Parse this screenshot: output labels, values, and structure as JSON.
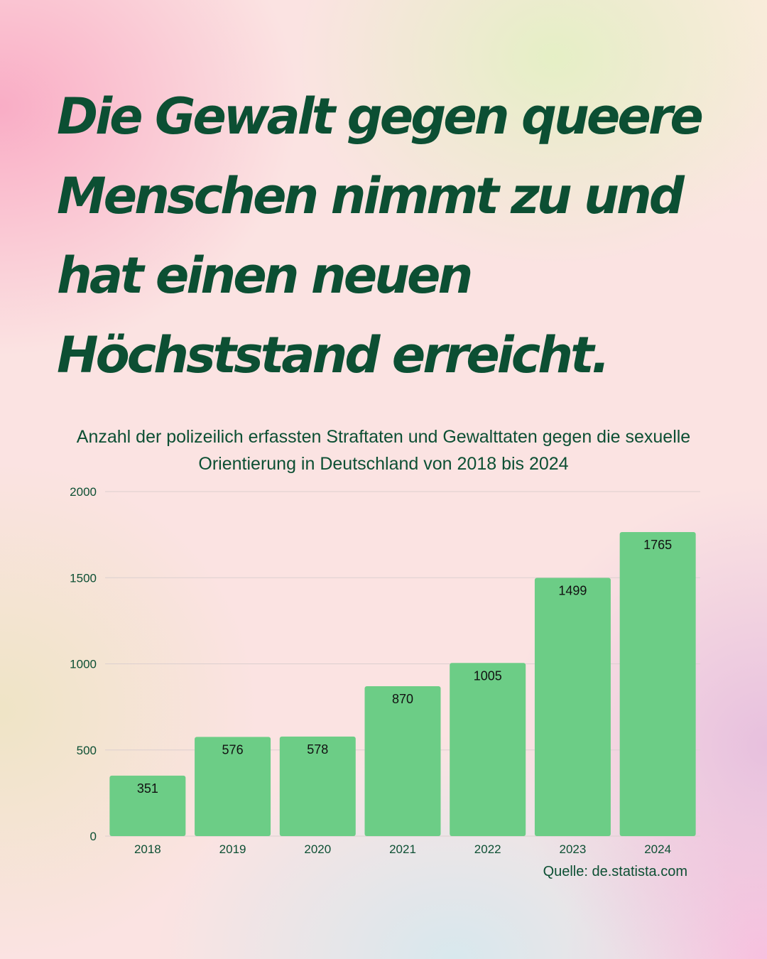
{
  "headline": "Die Gewalt gegen queere Menschen nimmt zu und hat einen neuen Höchststand erreicht.",
  "colors": {
    "text": "#0c4f33",
    "bar": "#6ccd86",
    "grid": "#dccfcf"
  },
  "chart_data": {
    "type": "bar",
    "title": "Anzahl der polizeilich erfassten Straftaten und Gewalttaten gegen die sexuelle Orientierung in Deutschland von 2018 bis 2024",
    "categories": [
      "2018",
      "2019",
      "2020",
      "2021",
      "2022",
      "2023",
      "2024"
    ],
    "values": [
      351,
      576,
      578,
      870,
      1005,
      1499,
      1765
    ],
    "ylim": [
      0,
      2000
    ],
    "yticks": [
      0,
      500,
      1000,
      1500,
      2000
    ],
    "grid": true,
    "data_labels": true,
    "legend": "none"
  },
  "source": "Quelle: de.statista.com"
}
